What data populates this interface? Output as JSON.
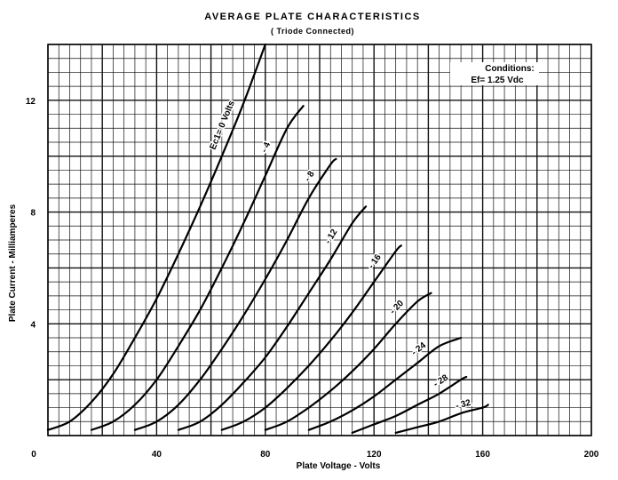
{
  "chart_data": {
    "type": "line",
    "title": "AVERAGE PLATE CHARACTERISTICS",
    "subtitle": "( Triode Connected)",
    "xlabel": "Plate Voltage - Volts",
    "ylabel": "Plate Current - Milliamperes",
    "xlim": [
      0,
      200
    ],
    "ylim": [
      0,
      14
    ],
    "x_ticks": [
      0,
      40,
      80,
      120,
      160,
      200
    ],
    "y_ticks": [
      4,
      8,
      12
    ],
    "x_tick_labels": [
      "0",
      "40",
      "80",
      "120",
      "160",
      "200"
    ],
    "y_tick_labels": [
      "4",
      "8",
      "12"
    ],
    "grid": true,
    "conditions": {
      "heading": "Conditions:",
      "value": "Ef= 1.25 Vdc"
    },
    "series": [
      {
        "label": "Ec1= 0 Volts",
        "x": [
          0,
          8,
          16,
          24,
          32,
          40,
          48,
          56,
          64,
          72,
          80
        ],
        "y": [
          0.2,
          0.5,
          1.2,
          2.2,
          3.5,
          4.9,
          6.5,
          8.2,
          10.0,
          11.9,
          14.0
        ]
      },
      {
        "label": "- 4",
        "x": [
          16,
          24,
          32,
          40,
          48,
          56,
          64,
          72,
          80,
          88,
          94
        ],
        "y": [
          0.2,
          0.5,
          1.1,
          2.0,
          3.2,
          4.5,
          6.0,
          7.6,
          9.3,
          11.0,
          11.8
        ]
      },
      {
        "label": "- 8",
        "x": [
          32,
          40,
          48,
          56,
          64,
          72,
          80,
          88,
          96,
          104,
          106
        ],
        "y": [
          0.2,
          0.5,
          1.1,
          2.0,
          3.1,
          4.3,
          5.6,
          7.0,
          8.5,
          9.7,
          9.9
        ]
      },
      {
        "label": "- 12",
        "x": [
          48,
          56,
          64,
          72,
          80,
          88,
          96,
          104,
          112,
          117
        ],
        "y": [
          0.2,
          0.5,
          1.1,
          1.9,
          2.8,
          3.9,
          5.1,
          6.3,
          7.6,
          8.2
        ]
      },
      {
        "label": "- 16",
        "x": [
          64,
          72,
          80,
          88,
          96,
          104,
          112,
          120,
          128,
          130
        ],
        "y": [
          0.2,
          0.5,
          1.0,
          1.7,
          2.5,
          3.4,
          4.4,
          5.5,
          6.6,
          6.8
        ]
      },
      {
        "label": "- 20",
        "x": [
          80,
          88,
          96,
          104,
          112,
          120,
          128,
          136,
          141
        ],
        "y": [
          0.2,
          0.5,
          1.0,
          1.6,
          2.3,
          3.1,
          4.0,
          4.8,
          5.1
        ]
      },
      {
        "label": "- 24",
        "x": [
          96,
          104,
          112,
          120,
          128,
          136,
          144,
          152
        ],
        "y": [
          0.2,
          0.5,
          0.9,
          1.4,
          2.0,
          2.6,
          3.2,
          3.5
        ]
      },
      {
        "label": "- 28",
        "x": [
          112,
          120,
          128,
          136,
          144,
          152,
          154
        ],
        "y": [
          0.1,
          0.4,
          0.7,
          1.1,
          1.5,
          2.0,
          2.1
        ]
      },
      {
        "label": "- 32",
        "x": [
          128,
          136,
          144,
          152,
          160,
          162
        ],
        "y": [
          0.1,
          0.3,
          0.5,
          0.8,
          1.0,
          1.1
        ]
      }
    ]
  }
}
